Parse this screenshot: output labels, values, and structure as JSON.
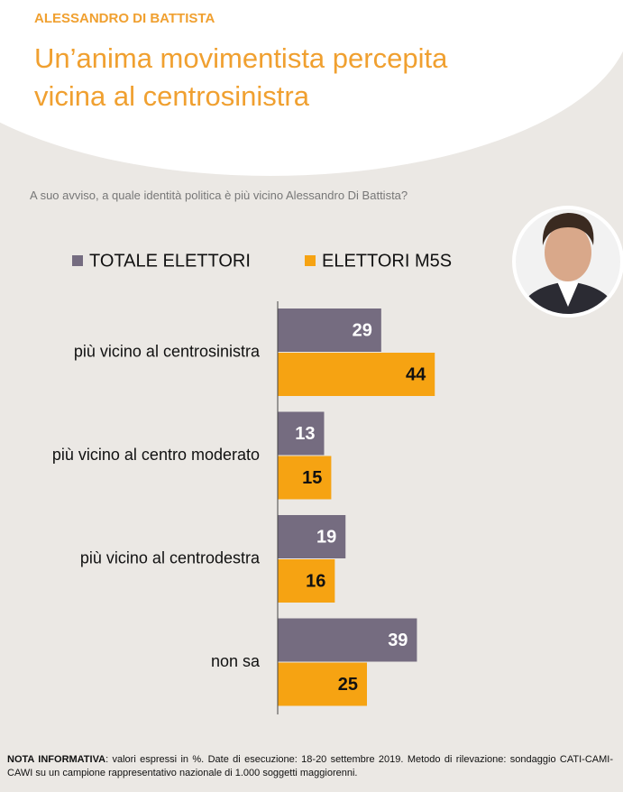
{
  "chart_data": {
    "type": "hbar",
    "supertitle": "ALESSANDRO DI BATTISTA",
    "title": "Un’anima movimentista percepita vicina al centrosinistra",
    "subtitle": "A suo avviso, a quale identità politica è più vicino Alessandro Di Battista?",
    "categories": [
      "più vicino al centrosinistra",
      "più vicino al centro moderato",
      "più vicino al centrodestra",
      "non sa"
    ],
    "series": [
      {
        "name": "TOTALE ELETTORI",
        "color": "#756c80",
        "values": [
          29,
          13,
          19,
          39
        ]
      },
      {
        "name": "ELETTORI M5S",
        "color": "#f6a312",
        "values": [
          44,
          15,
          16,
          25
        ]
      }
    ],
    "note": {
      "label": "NOTA INFORMATIVA",
      "text": ": valori espressi in %. Date di esecuzione: 18-20 settembre 2019. Metodo di rilevazione: sondaggio CATI-CAMI-CAWI su un campione rappresentativo nazionale di 1.000 soggetti maggiorenni."
    }
  }
}
